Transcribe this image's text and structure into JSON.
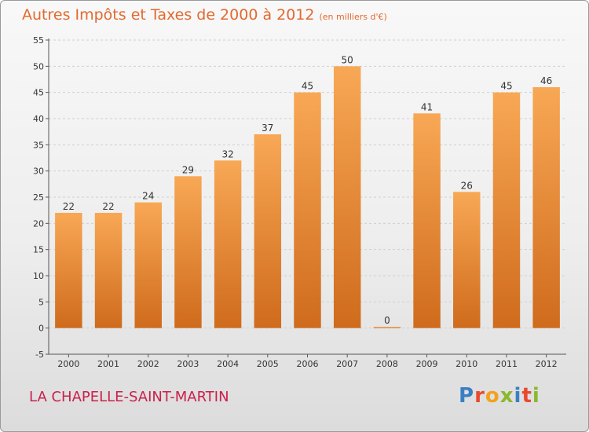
{
  "title": "Autres Impôts et Taxes de 2000 à 2012",
  "subtitle": "(en milliers d'€)",
  "city": "LA CHAPELLE-SAINT-MARTIN",
  "logo": {
    "text": "Proxiti",
    "letter_colors": [
      "#3a7fc4",
      "#e84a2f",
      "#f2a21c",
      "#8ab82e",
      "#3a7fc4",
      "#e84a2f",
      "#8ab82e"
    ]
  },
  "colors": {
    "bar_top": "#f8a855",
    "bar_bottom": "#cf6b1c",
    "axis": "#555555",
    "grid": "#cfcfcf",
    "text": "#333333"
  },
  "chart_data": {
    "type": "bar",
    "categories": [
      "2000",
      "2001",
      "2002",
      "2003",
      "2004",
      "2005",
      "2006",
      "2007",
      "2008",
      "2009",
      "2010",
      "2011",
      "2012"
    ],
    "values": [
      22,
      22,
      24,
      29,
      32,
      37,
      45,
      50,
      0,
      41,
      26,
      45,
      46
    ],
    "value_labels": [
      "22",
      "22",
      "24",
      "29",
      "32",
      "37",
      "45",
      "50",
      "0",
      "41",
      "26",
      "45",
      "46"
    ],
    "ylim": [
      -5,
      55
    ],
    "yticks": [
      -5,
      0,
      5,
      10,
      15,
      20,
      25,
      30,
      35,
      40,
      45,
      50,
      55
    ],
    "ytick_labels": [
      "-5",
      "0",
      "5",
      "10",
      "15",
      "20",
      "25",
      "30",
      "35",
      "40",
      "45",
      "50",
      "55"
    ],
    "grid": true,
    "legend": "none"
  }
}
